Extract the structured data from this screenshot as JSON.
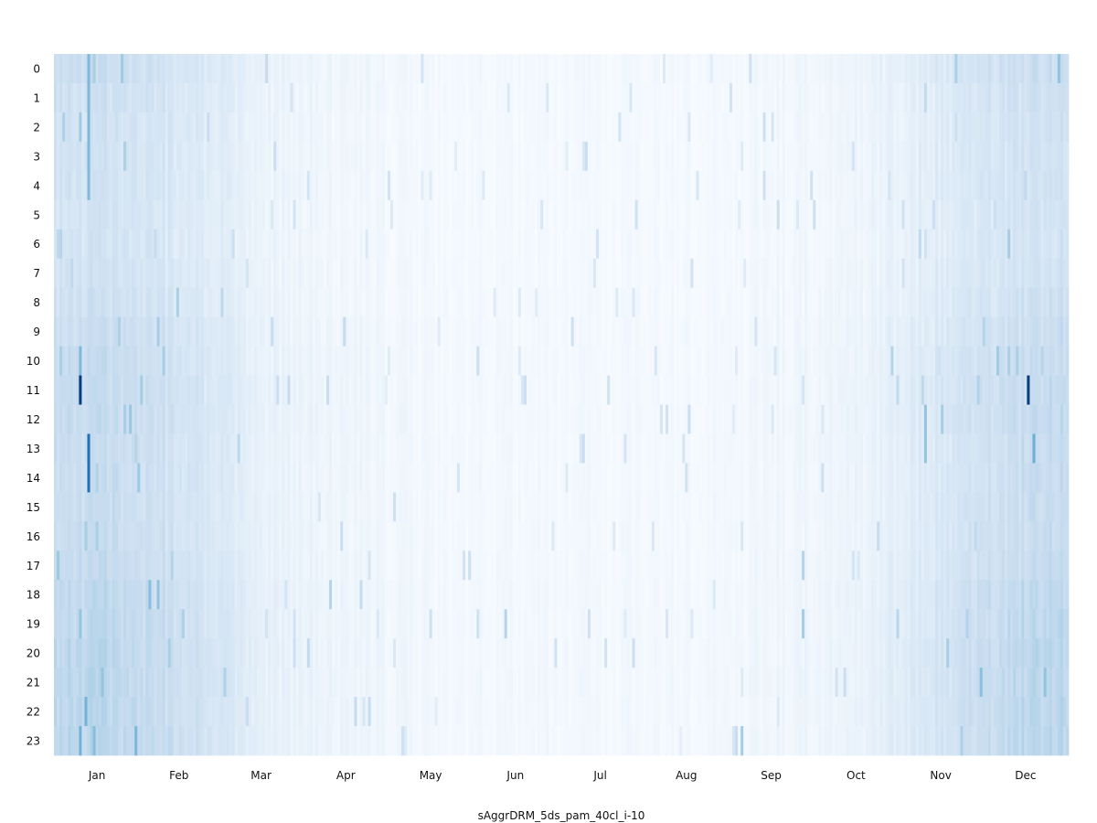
{
  "chart_data": {
    "type": "heatmap",
    "title": "",
    "xlabel": "sAggrDRM_5ds_pam_40cl_i-10",
    "ylabel": "",
    "x_tick_labels": [
      "Jan",
      "Feb",
      "Mar",
      "Apr",
      "May",
      "Jun",
      "Jul",
      "Aug",
      "Sep",
      "Oct",
      "Nov",
      "Dec"
    ],
    "y_tick_labels": [
      "0",
      "1",
      "2",
      "3",
      "4",
      "5",
      "6",
      "7",
      "8",
      "9",
      "10",
      "11",
      "12",
      "13",
      "14",
      "15",
      "16",
      "17",
      "18",
      "19",
      "20",
      "21",
      "22",
      "23"
    ],
    "x_range": [
      1,
      365
    ],
    "y_range": [
      0,
      23
    ],
    "grid": false,
    "legend": "none",
    "colormap": "Blues",
    "colors": {
      "low": "#f7fbff",
      "mid": "#c6dbef",
      "high": "#08306b"
    },
    "value_range": [
      0,
      1
    ],
    "seasonal_profile": {
      "months": [
        "Jan",
        "Feb",
        "Mar",
        "Apr",
        "May",
        "Jun",
        "Jul",
        "Aug",
        "Sep",
        "Oct",
        "Nov",
        "Dec"
      ],
      "mean_intensity": [
        0.22,
        0.18,
        0.07,
        0.04,
        0.02,
        0.02,
        0.02,
        0.02,
        0.03,
        0.05,
        0.14,
        0.22
      ]
    },
    "hourly_modifier": {
      "hours": [
        0,
        1,
        2,
        3,
        4,
        5,
        6,
        7,
        8,
        9,
        10,
        11,
        12,
        13,
        14,
        15,
        16,
        17,
        18,
        19,
        20,
        21,
        22,
        23
      ],
      "factor": [
        1.0,
        0.9,
        0.85,
        0.85,
        0.85,
        0.8,
        0.8,
        0.85,
        0.9,
        1.0,
        1.05,
        1.1,
        1.1,
        1.05,
        1.05,
        1.05,
        1.05,
        1.1,
        1.2,
        1.2,
        1.25,
        1.25,
        1.25,
        1.25
      ]
    },
    "highlights": [
      {
        "day": 10,
        "hour": 11,
        "value": 0.95
      },
      {
        "day": 13,
        "hour": 13,
        "value": 0.75
      },
      {
        "day": 13,
        "hour": 14,
        "value": 0.75
      },
      {
        "day": 13,
        "hour": 0,
        "value": 0.45
      },
      {
        "day": 13,
        "hour": 1,
        "value": 0.45
      },
      {
        "day": 13,
        "hour": 2,
        "value": 0.45
      },
      {
        "day": 13,
        "hour": 3,
        "value": 0.45
      },
      {
        "day": 13,
        "hour": 4,
        "value": 0.45
      },
      {
        "day": 10,
        "hour": 10,
        "value": 0.45
      },
      {
        "day": 351,
        "hour": 11,
        "value": 0.95
      },
      {
        "day": 353,
        "hour": 13,
        "value": 0.5
      },
      {
        "day": 314,
        "hour": 12,
        "value": 0.4
      },
      {
        "day": 314,
        "hour": 13,
        "value": 0.4
      },
      {
        "day": 270,
        "hour": 19,
        "value": 0.35
      },
      {
        "day": 270,
        "hour": 17,
        "value": 0.3
      },
      {
        "day": 302,
        "hour": 10,
        "value": 0.3
      },
      {
        "day": 248,
        "hour": 23,
        "value": 0.35
      },
      {
        "day": 100,
        "hour": 18,
        "value": 0.3
      },
      {
        "day": 163,
        "hour": 19,
        "value": 0.3
      }
    ]
  }
}
